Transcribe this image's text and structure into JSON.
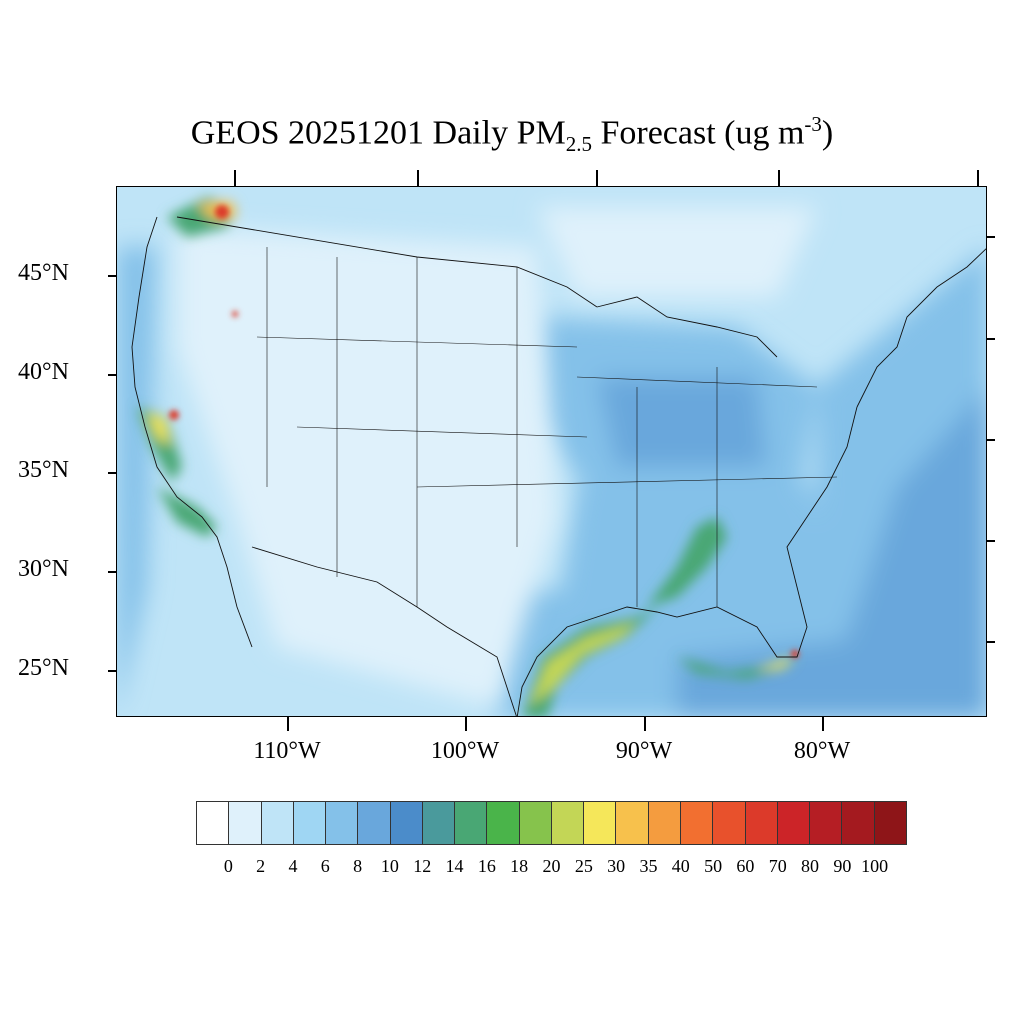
{
  "title": {
    "main": "GEOS 20251201 Daily PM",
    "sub": "2.5",
    "rest": " Forecast (ug m",
    "sup": "-3",
    "close": ")"
  },
  "lat_labels": [
    "45°N",
    "40°N",
    "35°N",
    "30°N",
    "25°N"
  ],
  "lon_labels": [
    "110°W",
    "100°W",
    "90°W",
    "80°W"
  ],
  "colorbar": {
    "colors": [
      "#ffffff",
      "#dff1fb",
      "#bfe4f7",
      "#9fd6f3",
      "#84c1e9",
      "#69a7dc",
      "#4b8cca",
      "#4a9a9c",
      "#49a774",
      "#4ab44a",
      "#86c34c",
      "#c3d656",
      "#f5e75a",
      "#f7c14c",
      "#f49c3f",
      "#f26f30",
      "#e8512c",
      "#dc3a2a",
      "#cc2428",
      "#b51e24",
      "#a41a1f",
      "#8e1518"
    ],
    "labels": [
      "0",
      "2",
      "4",
      "6",
      "8",
      "10",
      "12",
      "14",
      "16",
      "18",
      "20",
      "25",
      "30",
      "35",
      "40",
      "50",
      "60",
      "70",
      "80",
      "90",
      "100"
    ]
  },
  "map": {
    "background_color": "#bfe4f7",
    "ocean_color": "#84c1e9",
    "land_low_color": "#dff1fb",
    "high_concentration_color": "#f5e75a",
    "hotspot_color": "#dc3a2a"
  }
}
